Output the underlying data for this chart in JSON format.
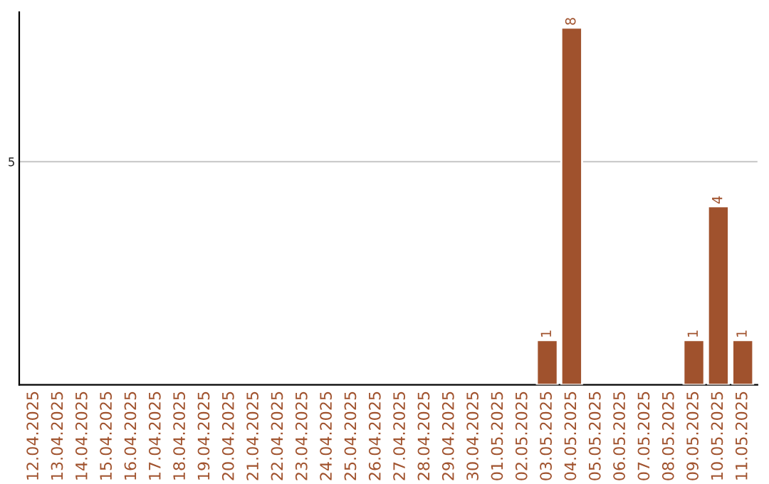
{
  "chart_data": {
    "type": "bar",
    "ylim": [
      0,
      8.35
    ],
    "categories": [
      "12.04.2025",
      "13.04.2025",
      "14.04.2025",
      "15.04.2025",
      "16.04.2025",
      "17.04.2025",
      "18.04.2025",
      "19.04.2025",
      "20.04.2025",
      "21.04.2025",
      "22.04.2025",
      "23.04.2025",
      "24.04.2025",
      "25.04.2025",
      "26.04.2025",
      "27.04.2025",
      "28.04.2025",
      "29.04.2025",
      "30.04.2025",
      "01.05.2025",
      "02.05.2025",
      "03.05.2025",
      "04.05.2025",
      "05.05.2025",
      "06.05.2025",
      "07.05.2025",
      "08.05.2025",
      "09.05.2025",
      "10.05.2025",
      "11.05.2025"
    ],
    "values": [
      null,
      null,
      null,
      null,
      null,
      null,
      null,
      null,
      null,
      null,
      null,
      null,
      null,
      null,
      null,
      null,
      null,
      null,
      null,
      null,
      null,
      1,
      8,
      null,
      null,
      null,
      null,
      1,
      4,
      1
    ],
    "value_labels": [
      null,
      null,
      null,
      null,
      null,
      null,
      null,
      null,
      null,
      null,
      null,
      null,
      null,
      null,
      null,
      null,
      null,
      null,
      null,
      null,
      null,
      "1",
      "8",
      null,
      null,
      null,
      null,
      "1",
      "4",
      "1"
    ],
    "color": "#a0522d",
    "yticks": [
      5
    ],
    "grid": "y"
  }
}
